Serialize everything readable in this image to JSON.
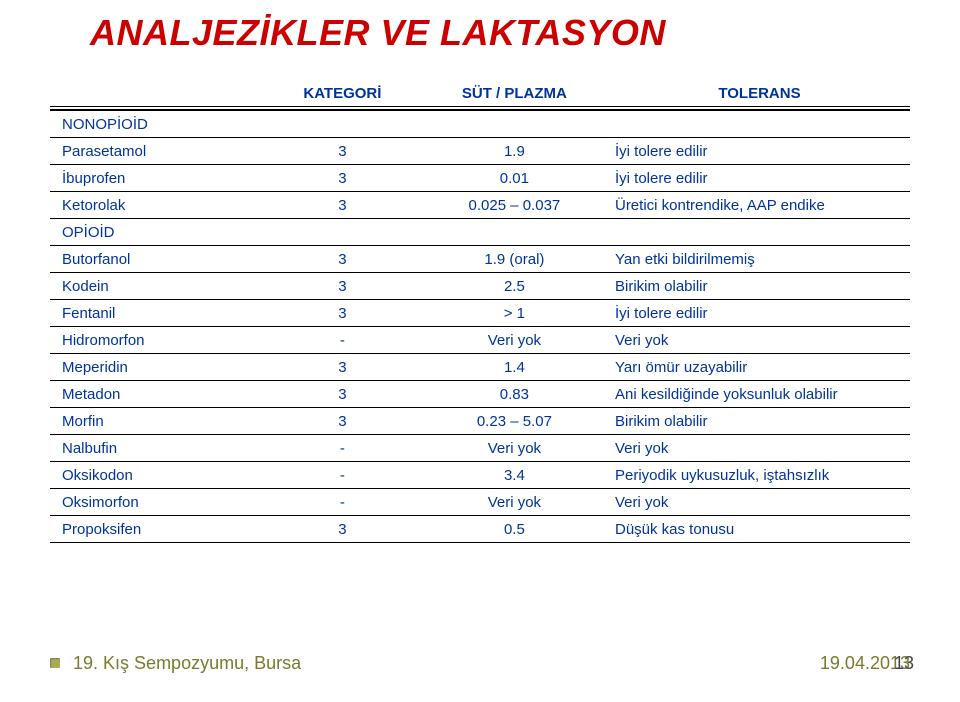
{
  "colors": {
    "title": "#cc0000",
    "header_text": "#003399",
    "section_text": "#003399",
    "row_text": "#003399",
    "footer_text": "#7a7a2e",
    "pagenum_text": "#444444",
    "rule": "#000000"
  },
  "title": "ANALJEZİKLER VE LAKTASYON",
  "header": {
    "name": "",
    "category": "KATEGORİ",
    "sut": "SÜT / PLAZMA",
    "tolerance": "TOLERANS"
  },
  "sections": [
    {
      "label": "NONOPİOİD",
      "rows": [
        {
          "name": "Parasetamol",
          "cat": "3",
          "sut": "1.9",
          "tol": "İyi tolere edilir"
        },
        {
          "name": "İbuprofen",
          "cat": "3",
          "sut": "0.01",
          "tol": "İyi tolere edilir"
        },
        {
          "name": "Ketorolak",
          "cat": "3",
          "sut": "0.025 – 0.037",
          "tol": "Üretici kontrendike, AAP endike"
        }
      ]
    },
    {
      "label": "OPİOİD",
      "rows": [
        {
          "name": "Butorfanol",
          "cat": "3",
          "sut": "1.9 (oral)",
          "tol": "Yan etki bildirilmemiş"
        },
        {
          "name": "Kodein",
          "cat": "3",
          "sut": "2.5",
          "tol": "Birikim olabilir"
        },
        {
          "name": "Fentanil",
          "cat": "3",
          "sut": "> 1",
          "tol": "İyi tolere edilir"
        },
        {
          "name": "Hidromorfon",
          "cat": "-",
          "sut": "Veri yok",
          "tol": "Veri yok"
        },
        {
          "name": "Meperidin",
          "cat": "3",
          "sut": "1.4",
          "tol": "Yarı ömür uzayabilir"
        },
        {
          "name": "Metadon",
          "cat": "3",
          "sut": "0.83",
          "tol": "Ani kesildiğinde yoksunluk olabilir"
        },
        {
          "name": "Morfin",
          "cat": "3",
          "sut": "0.23 – 5.07",
          "tol": "Birikim olabilir"
        },
        {
          "name": "Nalbufin",
          "cat": "-",
          "sut": "Veri yok",
          "tol": "Veri yok"
        },
        {
          "name": "Oksikodon",
          "cat": "-",
          "sut": "3.4",
          "tol": "Periyodik uykusuzluk, iştahsızlık"
        },
        {
          "name": "Oksimorfon",
          "cat": "-",
          "sut": "Veri yok",
          "tol": "Veri yok"
        },
        {
          "name": "Propoksifen",
          "cat": "3",
          "sut": "0.5",
          "tol": "Düşük kas tonusu"
        }
      ]
    }
  ],
  "footer": {
    "left": "19. Kış Sempozyumu, Bursa",
    "center": "19.04.2013",
    "page": "13"
  }
}
